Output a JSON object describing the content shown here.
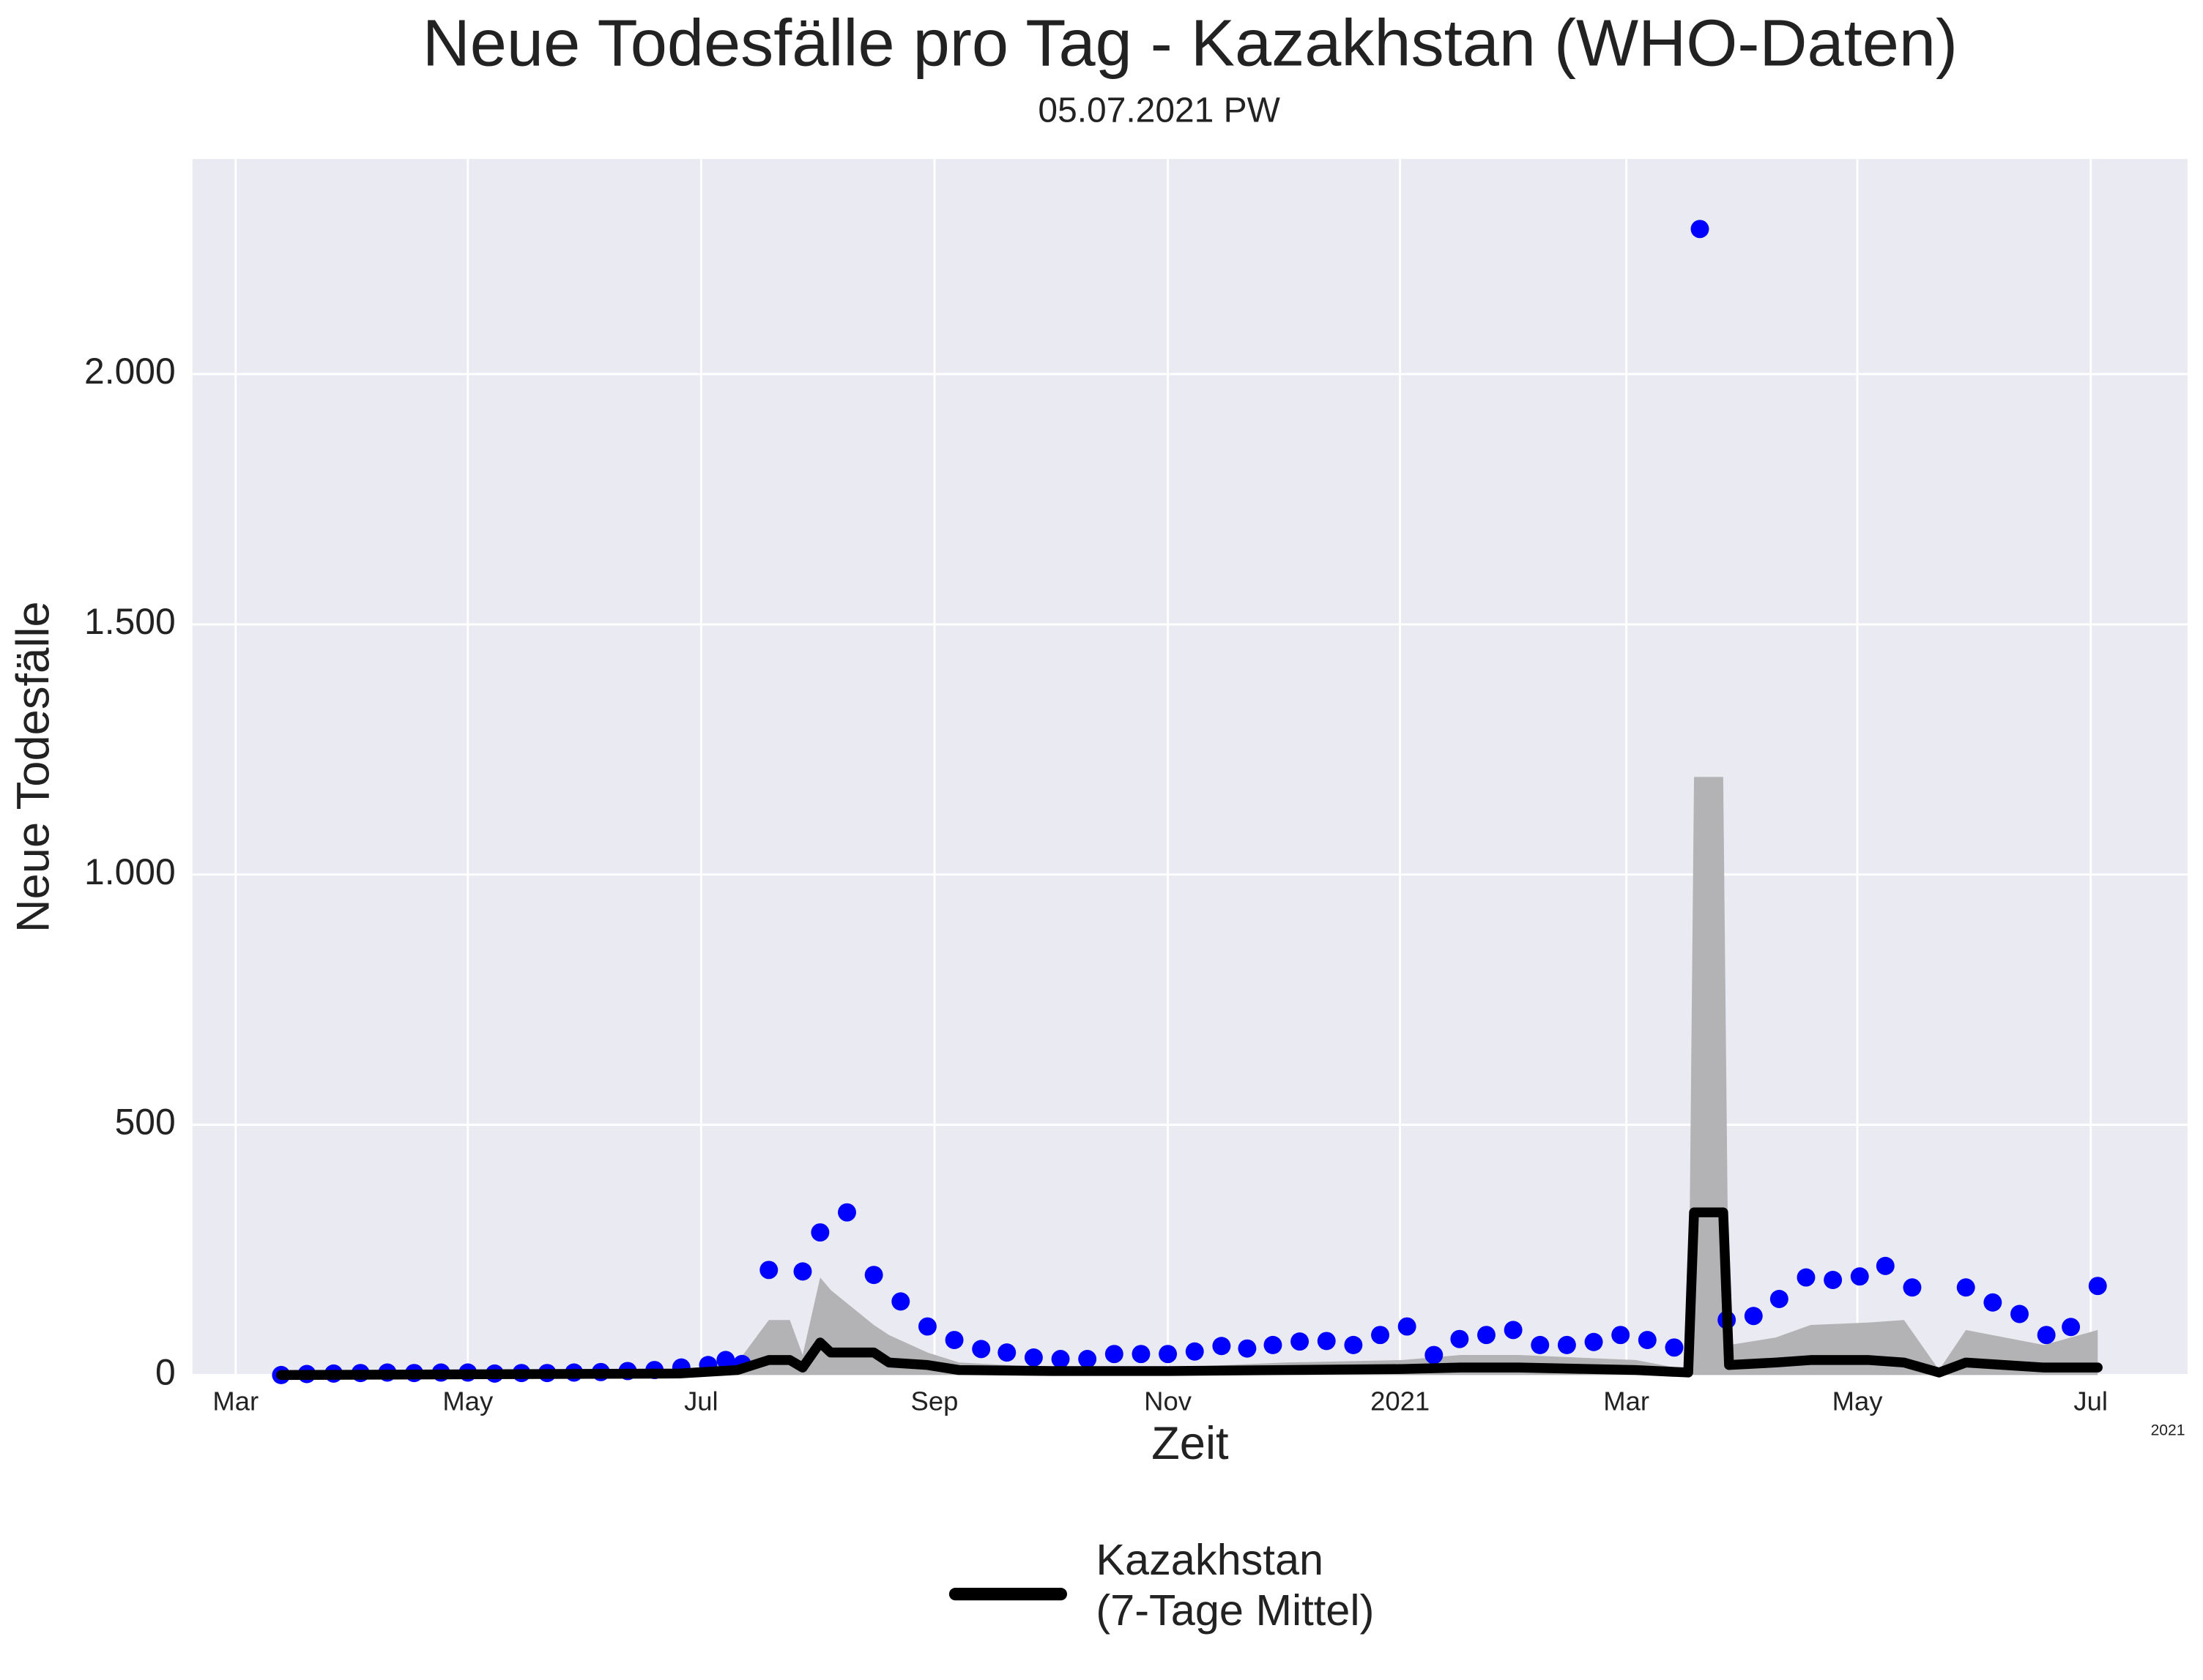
{
  "chart_data": {
    "type": "line",
    "title": "Neue Todesfälle pro Tag - Kazakhstan (WHO-Daten)",
    "subtitle": "05.07.2021 PW",
    "x_label": "Zeit",
    "y_label": "Neue Todesfälle",
    "x_offset_label": "2021",
    "xlim": [
      -0.37,
      16.73
    ],
    "xticks": [
      {
        "value": 0,
        "label": "Mar"
      },
      {
        "value": 1.99,
        "label": "May"
      },
      {
        "value": 3.99,
        "label": "Jul"
      },
      {
        "value": 5.99,
        "label": "Sep"
      },
      {
        "value": 7.99,
        "label": "Nov"
      },
      {
        "value": 9.98,
        "label": "2021"
      },
      {
        "value": 11.92,
        "label": "Mar"
      },
      {
        "value": 13.9,
        "label": "May"
      },
      {
        "value": 15.9,
        "label": "Jul"
      }
    ],
    "ylim": [
      0,
      2430
    ],
    "yticks": [
      0,
      500,
      {
        "value": 1000,
        "label": "1.000"
      },
      {
        "value": 1500,
        "label": "1.500"
      },
      {
        "value": 2000,
        "label": "2.000"
      }
    ],
    "grid": true,
    "background": "#eaeaf2",
    "legend": "bottom",
    "series": [
      {
        "name": "Kazakhstan\n(7-Tage Mittel)",
        "color": "#000000",
        "x": [
          0.39,
          3.8,
          4.3,
          4.57,
          4.75,
          4.86,
          5.01,
          5.1,
          5.47,
          5.6,
          5.93,
          6.2,
          7,
          8,
          9,
          10,
          10.5,
          11,
          12,
          12.45,
          12.5,
          12.75,
          12.8,
          13.2,
          13.5,
          14,
          14.3,
          14.6,
          14.83,
          15.5,
          15.96
        ],
        "values": [
          0,
          3,
          10,
          30,
          30,
          15,
          65,
          45,
          45,
          25,
          20,
          10,
          8,
          8,
          10,
          12,
          15,
          15,
          10,
          5,
          325,
          325,
          20,
          25,
          30,
          30,
          25,
          5,
          25,
          15,
          15
        ]
      }
    ],
    "band": {
      "color": "#b3b3b6",
      "x": [
        0.39,
        3.8,
        4.3,
        4.57,
        4.75,
        4.86,
        5.01,
        5.1,
        5.47,
        5.6,
        5.93,
        6.2,
        7,
        8,
        9,
        10,
        10.5,
        11,
        12,
        12.45,
        12.5,
        12.75,
        12.8,
        13.2,
        13.5,
        14,
        14.3,
        14.6,
        14.83,
        15.5,
        15.96
      ],
      "upper": [
        2,
        8,
        25,
        110,
        110,
        40,
        195,
        170,
        100,
        80,
        45,
        25,
        15,
        15,
        25,
        30,
        40,
        40,
        30,
        10,
        1195,
        1195,
        60,
        75,
        100,
        105,
        110,
        10,
        90,
        60,
        90
      ],
      "lower": [
        0,
        0,
        0,
        0,
        0,
        0,
        0,
        0,
        0,
        0,
        0,
        0,
        0,
        0,
        0,
        0,
        0,
        0,
        0,
        0,
        0,
        0,
        0,
        0,
        0,
        0,
        0,
        0,
        0,
        0,
        0
      ]
    },
    "points": {
      "color": "#0000ff",
      "x": [
        0.39,
        0.61,
        0.84,
        1.07,
        1.3,
        1.53,
        1.76,
        1.99,
        2.22,
        2.45,
        2.67,
        2.9,
        3.13,
        3.36,
        3.59,
        3.82,
        4.05,
        4.2,
        4.34,
        4.57,
        4.86,
        5.01,
        5.24,
        5.47,
        5.7,
        5.93,
        6.16,
        6.39,
        6.61,
        6.84,
        7.07,
        7.3,
        7.53,
        7.76,
        7.99,
        8.22,
        8.45,
        8.67,
        8.89,
        9.12,
        9.35,
        9.58,
        9.81,
        10.04,
        10.27,
        10.49,
        10.72,
        10.95,
        11.18,
        11.41,
        11.64,
        11.87,
        12.1,
        12.33,
        12.55,
        12.78,
        13.01,
        13.23,
        13.46,
        13.69,
        13.92,
        14.14,
        14.37,
        14.83,
        15.06,
        15.29,
        15.52,
        15.73,
        15.96
      ],
      "values": [
        0,
        2,
        3,
        4,
        5,
        4,
        5,
        5,
        3,
        4,
        4,
        5,
        6,
        8,
        10,
        15,
        20,
        30,
        22,
        210,
        207,
        285,
        325,
        200,
        147,
        97,
        70,
        52,
        45,
        35,
        32,
        32,
        42,
        42,
        42,
        47,
        58,
        53,
        60,
        67,
        68,
        60,
        80,
        97,
        40,
        72,
        80,
        90,
        60,
        60,
        66,
        80,
        70,
        55,
        2290,
        110,
        118,
        152,
        195,
        190,
        197,
        218,
        175,
        175,
        145,
        122,
        80,
        96,
        178
      ]
    }
  }
}
